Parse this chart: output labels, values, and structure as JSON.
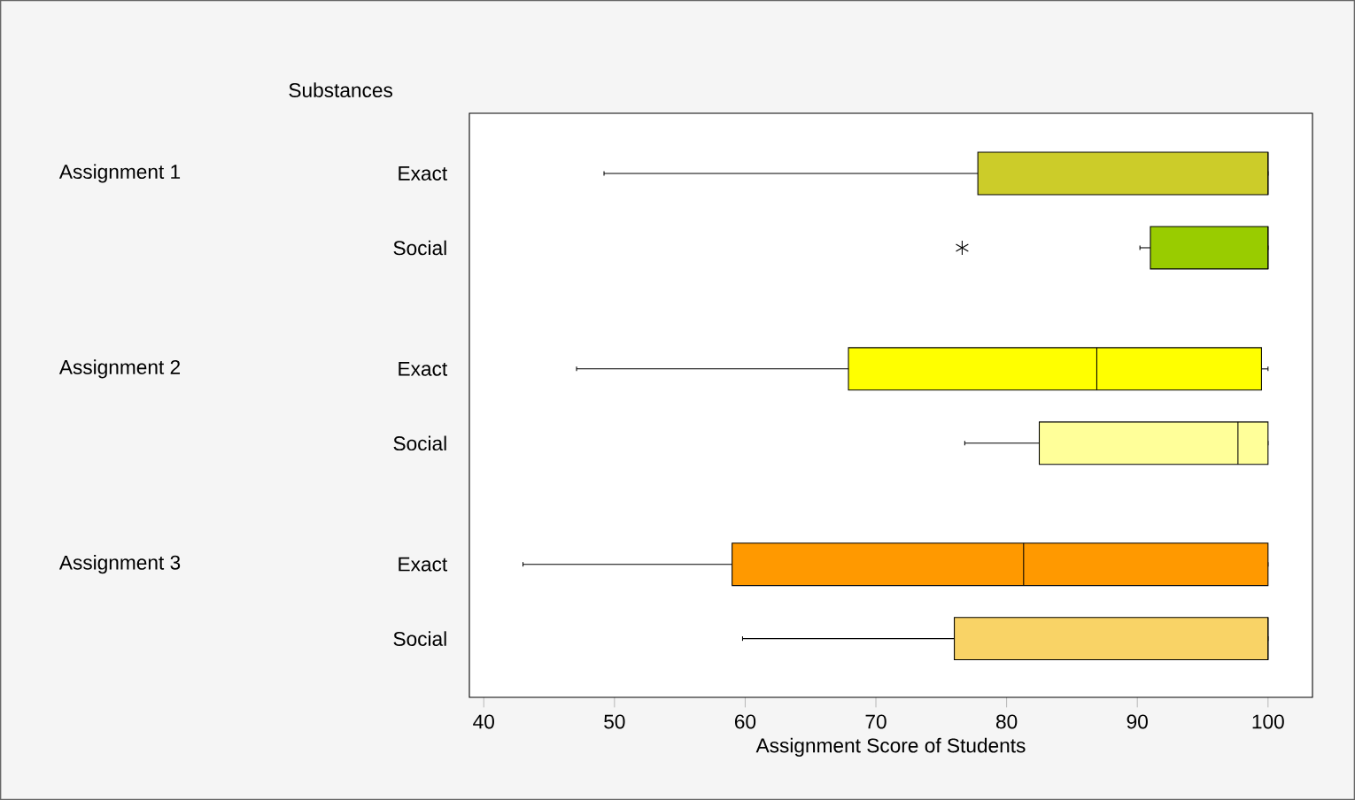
{
  "chart_data": {
    "type": "box",
    "orientation": "horizontal",
    "ylabel": "Substances",
    "xlabel": "Assignment Score of Students",
    "categories": [
      "Exact",
      "Social",
      "Exact",
      "Social",
      "Exact",
      "Social"
    ],
    "annotations": [
      "Assignment 1",
      "Assignment 2",
      "Assignment 3"
    ],
    "colors": [
      "#cccc29",
      "#99cc00",
      "#ffff00",
      "#ffff99",
      "#ff9900",
      "#f9d366"
    ],
    "boxes": [
      {
        "low": 49.2,
        "q1": 77.8,
        "median": 100,
        "q3": 100,
        "high": 100
      },
      {
        "low": 90.2,
        "q1": 91.0,
        "median": 100,
        "q3": 100,
        "high": 100,
        "outliers": [
          76.6
        ]
      },
      {
        "low": 47.1,
        "q1": 67.9,
        "median": 86.9,
        "q3": 99.5,
        "high": 100
      },
      {
        "low": 76.8,
        "q1": 82.5,
        "median": 97.7,
        "q3": 100,
        "high": 100
      },
      {
        "low": 43.0,
        "q1": 59.0,
        "median": 81.3,
        "q3": 100,
        "high": 100
      },
      {
        "low": 59.8,
        "q1": 76.0,
        "median": 100,
        "q3": 100,
        "high": 100
      }
    ],
    "xlim": [
      38.9,
      103.4
    ],
    "xticks": [
      40,
      50,
      60,
      70,
      80,
      90,
      100
    ]
  }
}
